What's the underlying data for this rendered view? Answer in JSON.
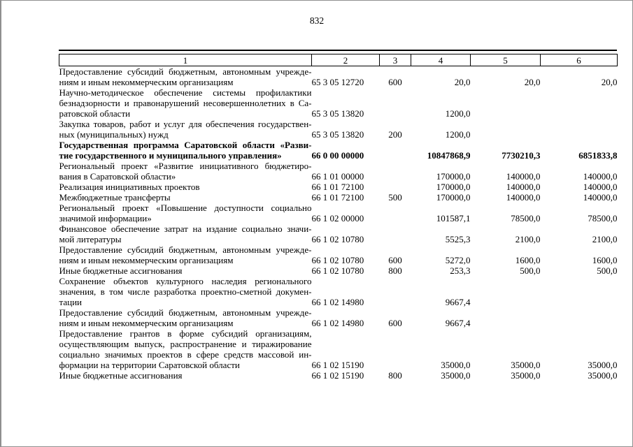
{
  "page": {
    "number": "832"
  },
  "colors": {
    "text": "#000000",
    "table_border": "#000000",
    "page_edge": "#8f8f8f"
  },
  "table": {
    "header": {
      "columns": [
        "1",
        "2",
        "3",
        "4",
        "5",
        "6"
      ]
    },
    "rows": [
      {
        "name_lines": [
          "Предоставление субсидий бюджетным, автономным учрежде-",
          "ниям и иным некоммерческим организациям"
        ],
        "code": "65 3 05 12720",
        "group": "600",
        "amounts": [
          "20,0",
          "20,0",
          "20,0"
        ],
        "bold": false
      },
      {
        "name_lines": [
          "Научно-методическое обеспечение системы профилактики",
          "безнадзорности и правонарушений несовершеннолетних в Са-",
          "ратовской области"
        ],
        "code": "65 3 05 13820",
        "group": "",
        "amounts": [
          "1200,0",
          "",
          ""
        ],
        "bold": false
      },
      {
        "name_lines": [
          "Закупка товаров, работ и услуг для обеспечения государствен-",
          "ных (муниципальных) нужд"
        ],
        "code": "65 3 05 13820",
        "group": "200",
        "amounts": [
          "1200,0",
          "",
          ""
        ],
        "bold": false
      },
      {
        "name_lines": [
          "Государственная программа Саратовской области «Разви-",
          "тие государственного и муниципального управления»"
        ],
        "code": "66 0 00 00000",
        "group": "",
        "amounts": [
          "10847868,9",
          "7730210,3",
          "6851833,8"
        ],
        "bold": true
      },
      {
        "name_lines": [
          "Региональный проект «Развитие инициативного бюджетиро-",
          "вания в Саратовской области»"
        ],
        "code": "66 1 01 00000",
        "group": "",
        "amounts": [
          "170000,0",
          "140000,0",
          "140000,0"
        ],
        "bold": false
      },
      {
        "name_lines": [
          "Реализация инициативных проектов"
        ],
        "code": "66 1 01 72100",
        "group": "",
        "amounts": [
          "170000,0",
          "140000,0",
          "140000,0"
        ],
        "bold": false
      },
      {
        "name_lines": [
          "Межбюджетные трансферты"
        ],
        "code": "66 1 01 72100",
        "group": "500",
        "amounts": [
          "170000,0",
          "140000,0",
          "140000,0"
        ],
        "bold": false
      },
      {
        "name_lines": [
          "Региональный проект «Повышение доступности социально",
          "значимой информации»"
        ],
        "code": "66 1 02 00000",
        "group": "",
        "amounts": [
          "101587,1",
          "78500,0",
          "78500,0"
        ],
        "bold": false
      },
      {
        "name_lines": [
          "Финансовое обеспечение затрат на издание социально значи-",
          "мой литературы"
        ],
        "code": "66 1 02 10780",
        "group": "",
        "amounts": [
          "5525,3",
          "2100,0",
          "2100,0"
        ],
        "bold": false
      },
      {
        "name_lines": [
          "Предоставление субсидий бюджетным, автономным учрежде-",
          "ниям и иным некоммерческим организациям"
        ],
        "code": "66 1 02 10780",
        "group": "600",
        "amounts": [
          "5272,0",
          "1600,0",
          "1600,0"
        ],
        "bold": false
      },
      {
        "name_lines": [
          "Иные бюджетные ассигнования"
        ],
        "code": "66 1 02 10780",
        "group": "800",
        "amounts": [
          "253,3",
          "500,0",
          "500,0"
        ],
        "bold": false
      },
      {
        "name_lines": [
          "Сохранение объектов культурного наследия регионального",
          "значения, в том числе разработка проектно-сметной докумен-",
          "тации"
        ],
        "code": "66 1 02 14980",
        "group": "",
        "amounts": [
          "9667,4",
          "",
          ""
        ],
        "bold": false
      },
      {
        "name_lines": [
          "Предоставление субсидий бюджетным, автономным учрежде-",
          "ниям и иным некоммерческим организациям"
        ],
        "code": "66 1 02 14980",
        "group": "600",
        "amounts": [
          "9667,4",
          "",
          ""
        ],
        "bold": false
      },
      {
        "name_lines": [
          "Предоставление грантов в форме субсидий организациям,",
          "осуществляющим выпуск, распространение и тиражирование",
          "социально значимых проектов в сфере средств массовой ин-",
          "формации на территории Саратовской области"
        ],
        "code": "66 1 02 15190",
        "group": "",
        "amounts": [
          "35000,0",
          "35000,0",
          "35000,0"
        ],
        "bold": false
      },
      {
        "name_lines": [
          "Иные бюджетные ассигнования"
        ],
        "code": "66 1 02 15190",
        "group": "800",
        "amounts": [
          "35000,0",
          "35000,0",
          "35000,0"
        ],
        "bold": false
      }
    ]
  }
}
